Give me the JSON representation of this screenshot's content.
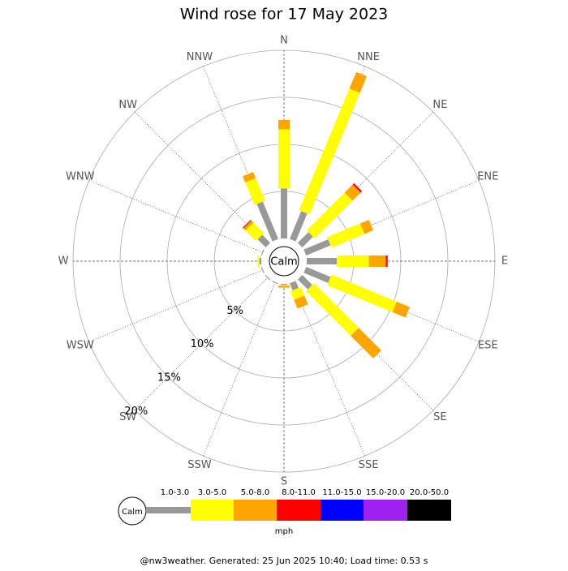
{
  "chart_data": {
    "type": "windrose",
    "title": "Wind rose for 17 May 2023",
    "directions": [
      "N",
      "NNE",
      "NE",
      "ENE",
      "E",
      "ESE",
      "SE",
      "SSE",
      "S",
      "SSW",
      "SW",
      "WSW",
      "W",
      "WNW",
      "NW",
      "NNW"
    ],
    "center_label": "Calm",
    "rlim": [
      0,
      20
    ],
    "rticks": [
      {
        "value": 5,
        "label": "5%"
      },
      {
        "value": 10,
        "label": "10%"
      },
      {
        "value": 15,
        "label": "15%"
      },
      {
        "value": 20,
        "label": "20%"
      }
    ],
    "legend_unit": "mph",
    "series": [
      {
        "name": "1.0-3.0",
        "color": "#999999",
        "values": [
          5.3,
          3.2,
          1.6,
          2.8,
          3.2,
          2.8,
          1.5,
          0.8,
          0.1,
          0.1,
          0.1,
          0.1,
          0.2,
          0.1,
          1.2,
          4.3
        ]
      },
      {
        "name": "3.0-5.0",
        "color": "#ffff00",
        "values": [
          6.3,
          14.0,
          5.7,
          3.8,
          3.4,
          7.5,
          6.7,
          1.0,
          0.1,
          0,
          0,
          0,
          0.2,
          0,
          1.6,
          2.6
        ]
      },
      {
        "name": "5.0-8.0",
        "color": "#ffa500",
        "values": [
          1.0,
          1.9,
          1.2,
          1.0,
          1.8,
          1.5,
          3.4,
          1.0,
          0.2,
          0,
          0,
          0,
          0,
          0,
          0.3,
          0.7
        ]
      },
      {
        "name": "8.0-11.0",
        "color": "#ff0000",
        "values": [
          0,
          0,
          0.2,
          0,
          0.2,
          0,
          0,
          0,
          0,
          0,
          0,
          0,
          0,
          0,
          0.1,
          0
        ]
      },
      {
        "name": "11.0-15.0",
        "color": "#0000ff",
        "values": [
          0,
          0,
          0,
          0,
          0,
          0,
          0,
          0,
          0,
          0,
          0,
          0,
          0,
          0,
          0,
          0
        ]
      },
      {
        "name": "15.0-20.0",
        "color": "#a020f0",
        "values": [
          0,
          0,
          0,
          0,
          0,
          0,
          0,
          0,
          0,
          0,
          0,
          0,
          0,
          0,
          0,
          0
        ]
      },
      {
        "name": "20.0-50.0",
        "color": "#000000",
        "values": [
          0,
          0,
          0,
          0,
          0,
          0,
          0,
          0,
          0,
          0,
          0,
          0,
          0,
          0,
          0,
          0
        ]
      }
    ]
  },
  "footer": "@nw3weather. Generated: 25 Jun 2025 10:40; Load time: 0.53 s"
}
